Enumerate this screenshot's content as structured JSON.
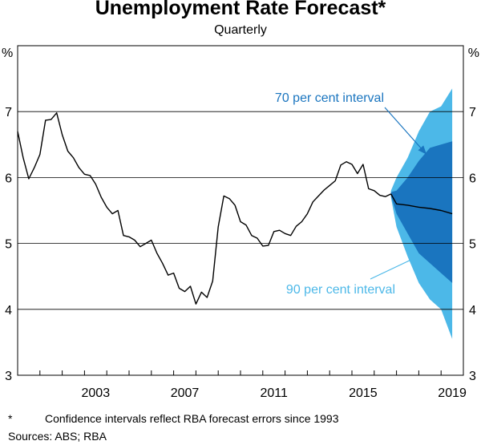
{
  "chart_data": {
    "type": "area",
    "title": "Unemployment Rate Forecast*",
    "subtitle": "Quarterly",
    "ylabel_left": "%",
    "ylabel_right": "%",
    "ylim": [
      3,
      8
    ],
    "xlim": [
      2000.0,
      2020.0
    ],
    "y_ticks": [
      3,
      4,
      5,
      6,
      7
    ],
    "x_ticks": [
      {
        "value": 2003,
        "label": "2003"
      },
      {
        "value": 2007,
        "label": "2007"
      },
      {
        "value": 2011,
        "label": "2011"
      },
      {
        "value": 2015,
        "label": "2015"
      },
      {
        "value": 2019,
        "label": "2019"
      }
    ],
    "series": [
      {
        "name": "Unemployment rate (actual)",
        "color": "#000000",
        "x": [
          2000.0,
          2000.25,
          2000.5,
          2000.75,
          2001.0,
          2001.25,
          2001.5,
          2001.75,
          2002.0,
          2002.25,
          2002.5,
          2002.75,
          2003.0,
          2003.25,
          2003.5,
          2003.75,
          2004.0,
          2004.25,
          2004.5,
          2004.75,
          2005.0,
          2005.25,
          2005.5,
          2005.75,
          2006.0,
          2006.25,
          2006.5,
          2006.75,
          2007.0,
          2007.25,
          2007.5,
          2007.75,
          2008.0,
          2008.25,
          2008.5,
          2008.75,
          2009.0,
          2009.25,
          2009.5,
          2009.75,
          2010.0,
          2010.25,
          2010.5,
          2010.75,
          2011.0,
          2011.25,
          2011.5,
          2011.75,
          2012.0,
          2012.25,
          2012.5,
          2012.75,
          2013.0,
          2013.25,
          2013.5,
          2013.75,
          2014.0,
          2014.25,
          2014.5,
          2014.75,
          2015.0,
          2015.25,
          2015.5,
          2015.75,
          2016.0,
          2016.25,
          2016.5,
          2016.75
        ],
        "values": [
          6.7,
          6.3,
          5.98,
          6.15,
          6.35,
          6.87,
          6.88,
          6.98,
          6.65,
          6.4,
          6.3,
          6.15,
          6.05,
          6.03,
          5.9,
          5.7,
          5.55,
          5.45,
          5.5,
          5.12,
          5.1,
          5.05,
          4.95,
          5.0,
          5.05,
          4.85,
          4.7,
          4.52,
          4.55,
          4.32,
          4.27,
          4.35,
          4.08,
          4.26,
          4.18,
          4.43,
          5.25,
          5.72,
          5.68,
          5.58,
          5.33,
          5.28,
          5.12,
          5.08,
          4.96,
          4.97,
          5.18,
          5.2,
          5.15,
          5.12,
          5.26,
          5.33,
          5.45,
          5.63,
          5.72,
          5.81,
          5.88,
          5.95,
          6.19,
          6.24,
          6.2,
          6.06,
          6.2,
          5.83,
          5.8,
          5.73,
          5.71,
          5.75
        ]
      },
      {
        "name": "Central forecast",
        "color": "#000000",
        "x": [
          2016.75,
          2017.0,
          2017.5,
          2018.0,
          2018.5,
          2019.0,
          2019.5
        ],
        "values": [
          5.75,
          5.6,
          5.58,
          5.55,
          5.53,
          5.5,
          5.45
        ]
      },
      {
        "name": "90 per cent interval",
        "color": "#4cb8e8",
        "x": [
          2016.75,
          2017.0,
          2017.5,
          2018.0,
          2018.5,
          2019.0,
          2019.5
        ],
        "upper": [
          5.8,
          6.0,
          6.3,
          6.7,
          7.0,
          7.08,
          7.35
        ],
        "lower": [
          5.7,
          5.25,
          4.8,
          4.4,
          4.15,
          4.0,
          3.55
        ]
      },
      {
        "name": "70 per cent interval",
        "color": "#1a75bf",
        "x": [
          2016.75,
          2017.0,
          2017.5,
          2018.0,
          2018.5,
          2019.0,
          2019.5
        ],
        "upper": [
          5.78,
          5.8,
          6.0,
          6.25,
          6.45,
          6.5,
          6.55
        ],
        "lower": [
          5.72,
          5.45,
          5.15,
          4.85,
          4.7,
          4.55,
          4.4
        ]
      }
    ],
    "annotations": [
      {
        "text": "70 per cent interval",
        "color": "#1a75bf",
        "points_to": "70 per cent interval",
        "arrow_to": [
          2018.35,
          6.35
        ]
      },
      {
        "text": "90 per cent interval",
        "color": "#4cb8e8",
        "points_to": "90 per cent interval",
        "arrow_to": [
          2017.95,
          4.8
        ]
      }
    ]
  },
  "footnote": {
    "mark": "*",
    "text": "Confidence intervals reflect RBA forecast errors since 1993"
  },
  "sources": "Sources: ABS; RBA"
}
